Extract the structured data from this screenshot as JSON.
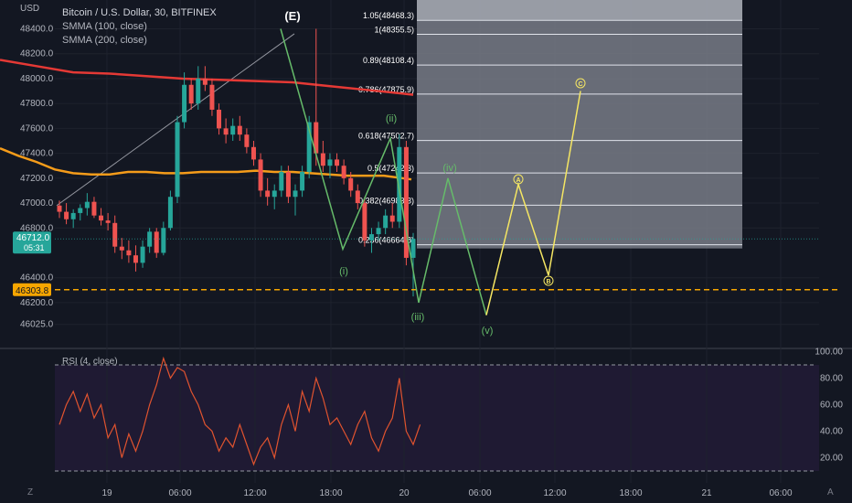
{
  "header": {
    "title": "Bitcoin / U.S. Dollar, 30, BITFINEX",
    "indicators": [
      "SMMA (100, close)",
      "SMMA (200, close)"
    ],
    "currency": "USD"
  },
  "price_axis": {
    "ticks": [
      "48400.0",
      "48200.0",
      "48000.0",
      "47800.0",
      "47600.0",
      "47400.0",
      "47200.0",
      "47000.0",
      "46800.0",
      "46400.0",
      "46200.0",
      "46025.0"
    ]
  },
  "time_axis": {
    "ticks": [
      "19",
      "06:00",
      "12:00",
      "18:00",
      "20",
      "06:00",
      "12:00",
      "18:00",
      "21",
      "06:00"
    ]
  },
  "current_price": {
    "value": "46712.0",
    "countdown": "05:31",
    "color": "#26a69a"
  },
  "level_line": {
    "value": "46303.8",
    "color": "#f7a600"
  },
  "fib_levels": [
    {
      "label": "1.05(48468.3)",
      "price": 48468.3
    },
    {
      "label": "1(48355.5)",
      "price": 48355.5
    },
    {
      "label": "0.89(48108.4)",
      "price": 48108.4
    },
    {
      "label": "0.786(47875.9)",
      "price": 47875.9
    },
    {
      "label": "0.618(47502.7)",
      "price": 47502.7
    },
    {
      "label": "0.5(47242.3)",
      "price": 47242.3
    },
    {
      "label": "0.382(46983.3)",
      "price": 46983.3
    },
    {
      "label": "0.236(46664.8)",
      "price": 46664.8
    }
  ],
  "wave_labels": {
    "E": "(E)",
    "i": "(i)",
    "ii": "(ii)",
    "iii": "(iii)",
    "iv": "(iv)",
    "v": "(v)",
    "A": "A",
    "B": "B",
    "C": "C"
  },
  "rsi": {
    "title": "RSI (4, close)",
    "ticks": [
      "100.00",
      "80.00",
      "60.00",
      "40.00",
      "20.00"
    ],
    "upper": 90,
    "lower": 10
  },
  "colors": {
    "bull": "#26a69a",
    "bear": "#ef5350",
    "smma100": "#f59c1a",
    "smma200": "#e53935",
    "wave_green": "#66bb6a",
    "wave_yellow": "#f5e663",
    "rsi_line": "#e0532f"
  },
  "chart_data": {
    "type": "candlestick",
    "title": "Bitcoin / U.S. Dollar, 30, BITFINEX",
    "ylabel": "USD",
    "ylim": [
      46025,
      48500
    ],
    "candles": [
      [
        46980,
        47020,
        46880,
        46930
      ],
      [
        46930,
        47000,
        46830,
        46870
      ],
      [
        46870,
        46950,
        46800,
        46920
      ],
      [
        46920,
        46990,
        46860,
        46960
      ],
      [
        46960,
        47080,
        46900,
        47010
      ],
      [
        47010,
        47050,
        46880,
        46900
      ],
      [
        46900,
        46960,
        46820,
        46860
      ],
      [
        46860,
        46920,
        46780,
        46840
      ],
      [
        46840,
        46900,
        46600,
        46650
      ],
      [
        46650,
        46720,
        46550,
        46620
      ],
      [
        46620,
        46700,
        46520,
        46580
      ],
      [
        46580,
        46660,
        46450,
        46520
      ],
      [
        46520,
        46700,
        46480,
        46650
      ],
      [
        46650,
        46800,
        46600,
        46770
      ],
      [
        46770,
        46800,
        46560,
        46600
      ],
      [
        46600,
        46850,
        46580,
        46800
      ],
      [
        46800,
        47100,
        46780,
        47050
      ],
      [
        47050,
        47700,
        47000,
        47650
      ],
      [
        47650,
        48050,
        47600,
        47950
      ],
      [
        47950,
        48000,
        47750,
        47800
      ],
      [
        47800,
        48100,
        47750,
        48000
      ],
      [
        48000,
        48100,
        47900,
        47950
      ],
      [
        47950,
        48000,
        47700,
        47750
      ],
      [
        47750,
        47800,
        47550,
        47600
      ],
      [
        47600,
        47680,
        47480,
        47550
      ],
      [
        47550,
        47680,
        47500,
        47620
      ],
      [
        47620,
        47700,
        47500,
        47550
      ],
      [
        47550,
        47600,
        47400,
        47450
      ],
      [
        47450,
        47500,
        47300,
        47350
      ],
      [
        47350,
        47400,
        47050,
        47100
      ],
      [
        47100,
        47200,
        46980,
        47050
      ],
      [
        47050,
        47150,
        46950,
        47100
      ],
      [
        47100,
        47300,
        47050,
        47250
      ],
      [
        47250,
        47300,
        47000,
        47050
      ],
      [
        47050,
        47150,
        46900,
        47100
      ],
      [
        47100,
        47300,
        47050,
        47250
      ],
      [
        47250,
        47700,
        47200,
        47650
      ],
      [
        47650,
        48400,
        47300,
        47400
      ],
      [
        47400,
        47500,
        47250,
        47300
      ],
      [
        47300,
        47400,
        47200,
        47350
      ],
      [
        47350,
        47400,
        47250,
        47300
      ],
      [
        47300,
        47350,
        47150,
        47200
      ],
      [
        47200,
        47250,
        47050,
        47100
      ],
      [
        47100,
        47150,
        46950,
        47000
      ],
      [
        47000,
        47050,
        46650,
        46700
      ],
      [
        46700,
        46800,
        46600,
        46750
      ],
      [
        46750,
        46850,
        46700,
        46800
      ],
      [
        46800,
        46950,
        46750,
        46900
      ],
      [
        46900,
        47000,
        46800,
        46850
      ],
      [
        46850,
        47550,
        46800,
        47450
      ],
      [
        47450,
        47500,
        46500,
        46560
      ],
      [
        46560,
        46760,
        46250,
        46712
      ]
    ],
    "smma100": [
      [
        0,
        47440
      ],
      [
        20,
        47380
      ],
      [
        40,
        47330
      ],
      [
        60,
        47270
      ],
      [
        80,
        47240
      ],
      [
        100,
        47230
      ],
      [
        120,
        47230
      ],
      [
        140,
        47250
      ],
      [
        160,
        47250
      ],
      [
        180,
        47240
      ],
      [
        200,
        47240
      ],
      [
        220,
        47250
      ],
      [
        240,
        47250
      ],
      [
        260,
        47250
      ],
      [
        280,
        47260
      ],
      [
        300,
        47250
      ],
      [
        320,
        47250
      ],
      [
        340,
        47240
      ],
      [
        360,
        47230
      ],
      [
        380,
        47220
      ],
      [
        400,
        47220
      ],
      [
        420,
        47220
      ],
      [
        440,
        47200
      ],
      [
        450,
        47190
      ]
    ],
    "smma200": [
      [
        0,
        48150
      ],
      [
        40,
        48100
      ],
      [
        80,
        48050
      ],
      [
        120,
        48040
      ],
      [
        160,
        48020
      ],
      [
        200,
        48000
      ],
      [
        240,
        47990
      ],
      [
        280,
        47980
      ],
      [
        320,
        47970
      ],
      [
        360,
        47940
      ],
      [
        400,
        47910
      ],
      [
        440,
        47880
      ],
      [
        452,
        47870
      ]
    ],
    "wave_green": [
      [
        307,
        48400
      ],
      [
        375,
        46630
      ],
      [
        427,
        47520
      ],
      [
        458,
        46200
      ],
      [
        490,
        47200
      ],
      [
        532,
        46100
      ]
    ],
    "wave_yellow": [
      [
        532,
        46100
      ],
      [
        567,
        47150
      ],
      [
        600,
        46420
      ],
      [
        635,
        47900
      ]
    ],
    "rsi_values": [
      45,
      60,
      70,
      55,
      68,
      50,
      60,
      35,
      45,
      20,
      38,
      25,
      40,
      60,
      75,
      95,
      80,
      88,
      85,
      70,
      60,
      45,
      40,
      25,
      35,
      28,
      45,
      30,
      15,
      28,
      35,
      20,
      45,
      60,
      40,
      70,
      55,
      80,
      65,
      45,
      50,
      40,
      30,
      45,
      55,
      35,
      25,
      40,
      50,
      80,
      40,
      30,
      45
    ]
  }
}
